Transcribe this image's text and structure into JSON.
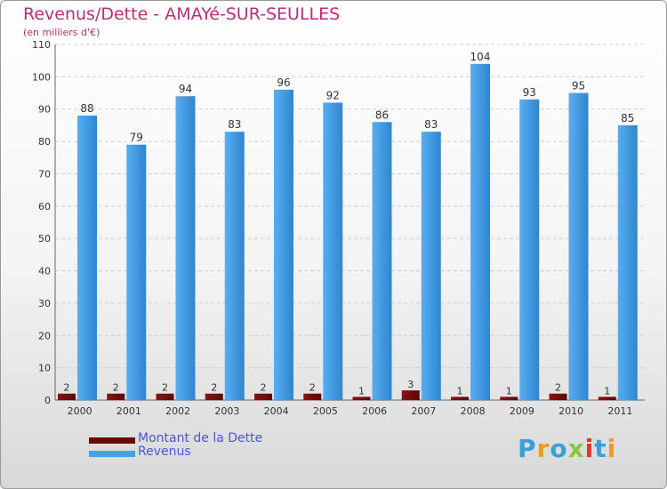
{
  "chart_data": {
    "type": "bar",
    "title": "Revenus/Dette - AMAYé-SUR-SEULLES",
    "subtitle": "(en milliers d'€)",
    "categories": [
      "2000",
      "2001",
      "2002",
      "2003",
      "2004",
      "2005",
      "2006",
      "2007",
      "2008",
      "2009",
      "2010",
      "2011"
    ],
    "series": [
      {
        "name": "Montant de la Dette",
        "color": "#6b0a0a",
        "values": [
          2,
          2,
          2,
          2,
          2,
          2,
          1,
          3,
          1,
          1,
          2,
          1
        ]
      },
      {
        "name": "Revenus",
        "color": "#4a9fe0",
        "values": [
          88,
          79,
          94,
          83,
          96,
          92,
          86,
          83,
          104,
          93,
          95,
          85
        ]
      }
    ],
    "ylim": [
      0,
      110
    ],
    "yticks": [
      0,
      10,
      20,
      30,
      40,
      50,
      60,
      70,
      80,
      90,
      100,
      110
    ],
    "grid": true,
    "legend_position": "bottom-left"
  },
  "logo": {
    "text": "Proxiti",
    "colors": [
      "#3aa0d8",
      "#f29a1a",
      "#3aa0d8",
      "#8cc63f",
      "#e8322b",
      "#3aa0d8",
      "#f29a1a"
    ]
  }
}
